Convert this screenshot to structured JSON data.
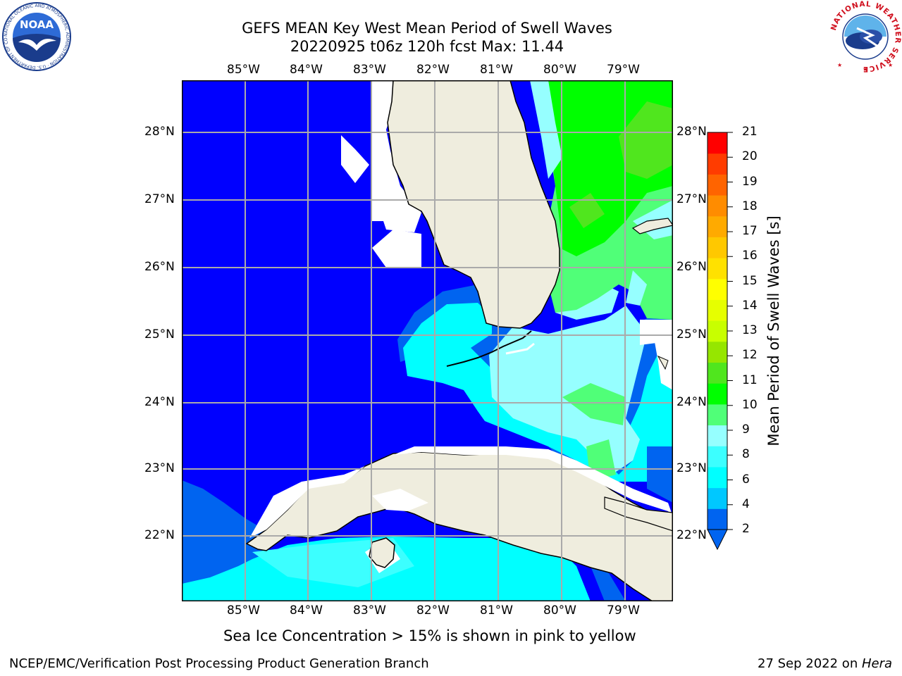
{
  "title_line1": "GEFS MEAN Key West Mean Period of Swell Waves",
  "title_line2": "20220925 t06z 120h fcst   Max: 11.44",
  "lon_labels": [
    "85°W",
    "84°W",
    "83°W",
    "82°W",
    "81°W",
    "80°W",
    "79°W"
  ],
  "lat_labels": [
    "28°N",
    "27°N",
    "26°N",
    "25°N",
    "24°N",
    "23°N",
    "22°N"
  ],
  "colorbar": {
    "label": "Mean Period of Swell Waves [s]",
    "ticks": [
      "21",
      "20",
      "19",
      "18",
      "17",
      "16",
      "15",
      "14",
      "13",
      "12",
      "11",
      "10",
      "9",
      "8",
      "6",
      "4",
      "2"
    ],
    "colors": [
      "#0064f0",
      "#00c8ff",
      "#00ffff",
      "#3cffff",
      "#96ffff",
      "#50ff78",
      "#00ff00",
      "#50e61e",
      "#96e600",
      "#c8ff00",
      "#e6ff00",
      "#ffff00",
      "#ffe100",
      "#ffc800",
      "#ffaa00",
      "#ff8c00",
      "#ff6400",
      "#ff3c00",
      "#ff0000"
    ]
  },
  "note": "Sea Ice Concentration > 15% is shown in pink to yellow",
  "footer_left": "NCEP/EMC/Verification Post Processing Product Generation Branch",
  "footer_date": "27 Sep 2022 on ",
  "footer_host": "Hera",
  "logos": {
    "left_text": "NOAA",
    "left_ring": "NATIONAL OCEANIC AND ATMOSPHERIC ADMINISTRATION · U.S. DEPARTMENT OF COMMERCE",
    "right_ring": "NATIONAL WEATHER SERVICE"
  }
}
